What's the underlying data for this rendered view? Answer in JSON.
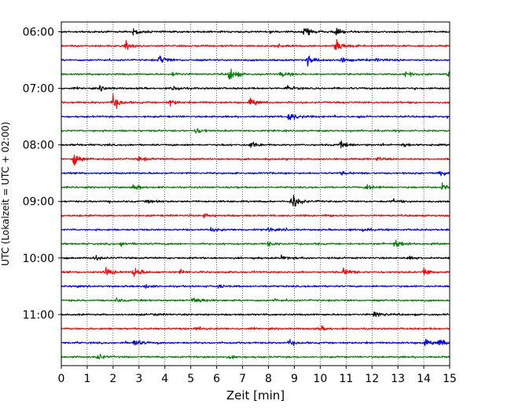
{
  "chart_data": {
    "type": "line",
    "title": "",
    "xlabel": "Zeit  [min]",
    "ylabel": "UTC (Lokalzeit = UTC + 02:00)",
    "xlim": [
      0,
      15
    ],
    "x_ticks": [
      "0",
      "1",
      "2",
      "3",
      "4",
      "5",
      "6",
      "7",
      "8",
      "9",
      "10",
      "11",
      "12",
      "13",
      "14",
      "15"
    ],
    "y_ticks": [
      "06:00",
      "07:00",
      "08:00",
      "09:00",
      "10:00",
      "11:00"
    ],
    "grid": "vertical dotted",
    "trace_colors": [
      "#000000",
      "#ff0000",
      "#0000ff",
      "#008000"
    ],
    "traces_per_hour": 4,
    "minutes_per_trace": 15,
    "traces": [
      {
        "start": "06:00",
        "color": "#000000",
        "events": [
          {
            "t": 2.8,
            "a": 0.5
          },
          {
            "t": 9.4,
            "a": 1.0
          },
          {
            "t": 10.6,
            "a": 0.4
          }
        ]
      },
      {
        "start": "06:15",
        "color": "#ff0000",
        "events": [
          {
            "t": 2.5,
            "a": 0.6
          },
          {
            "t": 8.3,
            "a": 0.3
          },
          {
            "t": 10.6,
            "a": 0.9
          }
        ]
      },
      {
        "start": "06:30",
        "color": "#0000ff",
        "events": [
          {
            "t": 3.8,
            "a": 0.7
          },
          {
            "t": 9.5,
            "a": 0.7
          },
          {
            "t": 10.8,
            "a": 0.4
          },
          {
            "t": 12.2,
            "a": 0.3
          }
        ]
      },
      {
        "start": "06:45",
        "color": "#008000",
        "events": [
          {
            "t": 4.3,
            "a": 0.3
          },
          {
            "t": 6.5,
            "a": 1.1
          },
          {
            "t": 8.5,
            "a": 0.4
          },
          {
            "t": 13.3,
            "a": 0.4
          },
          {
            "t": 14.9,
            "a": 0.5
          }
        ]
      },
      {
        "start": "07:00",
        "color": "#000000",
        "events": [
          {
            "t": 1.5,
            "a": 0.3
          },
          {
            "t": 4.3,
            "a": 0.4
          },
          {
            "t": 8.7,
            "a": 0.4
          }
        ]
      },
      {
        "start": "07:15",
        "color": "#ff0000",
        "events": [
          {
            "t": 2.0,
            "a": 1.0
          },
          {
            "t": 4.2,
            "a": 0.4
          },
          {
            "t": 7.3,
            "a": 0.5
          }
        ]
      },
      {
        "start": "07:30",
        "color": "#0000ff",
        "events": [
          {
            "t": 8.8,
            "a": 0.8
          },
          {
            "t": 11.5,
            "a": 0.2
          }
        ]
      },
      {
        "start": "07:45",
        "color": "#008000",
        "events": [
          {
            "t": 5.2,
            "a": 0.4
          }
        ]
      },
      {
        "start": "08:00",
        "color": "#000000",
        "events": [
          {
            "t": 7.3,
            "a": 0.5
          },
          {
            "t": 10.8,
            "a": 0.4
          },
          {
            "t": 13.2,
            "a": 0.3
          }
        ]
      },
      {
        "start": "08:15",
        "color": "#ff0000",
        "events": [
          {
            "t": 0.5,
            "a": 0.9
          },
          {
            "t": 3.0,
            "a": 0.3
          },
          {
            "t": 12.2,
            "a": 0.3
          }
        ]
      },
      {
        "start": "08:30",
        "color": "#0000ff",
        "events": [
          {
            "t": 14.6,
            "a": 0.6
          },
          {
            "t": 10.8,
            "a": 0.2
          }
        ]
      },
      {
        "start": "08:45",
        "color": "#008000",
        "events": [
          {
            "t": 2.8,
            "a": 0.4
          },
          {
            "t": 11.8,
            "a": 0.5
          },
          {
            "t": 14.7,
            "a": 0.6
          }
        ]
      },
      {
        "start": "09:00",
        "color": "#000000",
        "events": [
          {
            "t": 8.9,
            "a": 1.4
          },
          {
            "t": 3.3,
            "a": 0.2
          },
          {
            "t": 12.8,
            "a": 0.3
          }
        ]
      },
      {
        "start": "09:15",
        "color": "#ff0000",
        "events": [
          {
            "t": 5.5,
            "a": 0.3
          },
          {
            "t": 10.2,
            "a": 0.2
          }
        ]
      },
      {
        "start": "09:30",
        "color": "#0000ff",
        "events": [
          {
            "t": 5.8,
            "a": 0.3
          },
          {
            "t": 8.0,
            "a": 0.3
          },
          {
            "t": 11.6,
            "a": 0.2
          }
        ]
      },
      {
        "start": "09:45",
        "color": "#008000",
        "events": [
          {
            "t": 2.3,
            "a": 0.4
          },
          {
            "t": 8.0,
            "a": 0.3
          },
          {
            "t": 12.9,
            "a": 0.7
          }
        ]
      },
      {
        "start": "10:00",
        "color": "#000000",
        "events": [
          {
            "t": 1.3,
            "a": 0.3
          },
          {
            "t": 8.5,
            "a": 0.3
          },
          {
            "t": 13.4,
            "a": 0.2
          }
        ]
      },
      {
        "start": "10:15",
        "color": "#ff0000",
        "events": [
          {
            "t": 1.7,
            "a": 0.7
          },
          {
            "t": 2.8,
            "a": 0.8
          },
          {
            "t": 4.6,
            "a": 0.3
          },
          {
            "t": 10.9,
            "a": 0.5
          },
          {
            "t": 14.0,
            "a": 0.7
          }
        ]
      },
      {
        "start": "10:30",
        "color": "#0000ff",
        "events": [
          {
            "t": 3.2,
            "a": 0.3
          },
          {
            "t": 6.0,
            "a": 0.2
          }
        ]
      },
      {
        "start": "10:45",
        "color": "#008000",
        "events": [
          {
            "t": 5.1,
            "a": 0.7
          },
          {
            "t": 2.1,
            "a": 0.3
          },
          {
            "t": 8.2,
            "a": 0.2
          }
        ]
      },
      {
        "start": "11:00",
        "color": "#000000",
        "events": [
          {
            "t": 12.1,
            "a": 0.5
          },
          {
            "t": 3.5,
            "a": 0.2
          }
        ]
      },
      {
        "start": "11:15",
        "color": "#ff0000",
        "events": [
          {
            "t": 5.2,
            "a": 0.3
          },
          {
            "t": 10.0,
            "a": 0.3
          }
        ]
      },
      {
        "start": "11:30",
        "color": "#0000ff",
        "events": [
          {
            "t": 2.8,
            "a": 0.5
          },
          {
            "t": 8.8,
            "a": 0.4
          },
          {
            "t": 14.0,
            "a": 0.5
          },
          {
            "t": 14.6,
            "a": 0.6
          }
        ]
      },
      {
        "start": "11:45",
        "color": "#008000",
        "events": [
          {
            "t": 1.4,
            "a": 0.4
          },
          {
            "t": 6.5,
            "a": 0.2
          }
        ]
      }
    ]
  }
}
